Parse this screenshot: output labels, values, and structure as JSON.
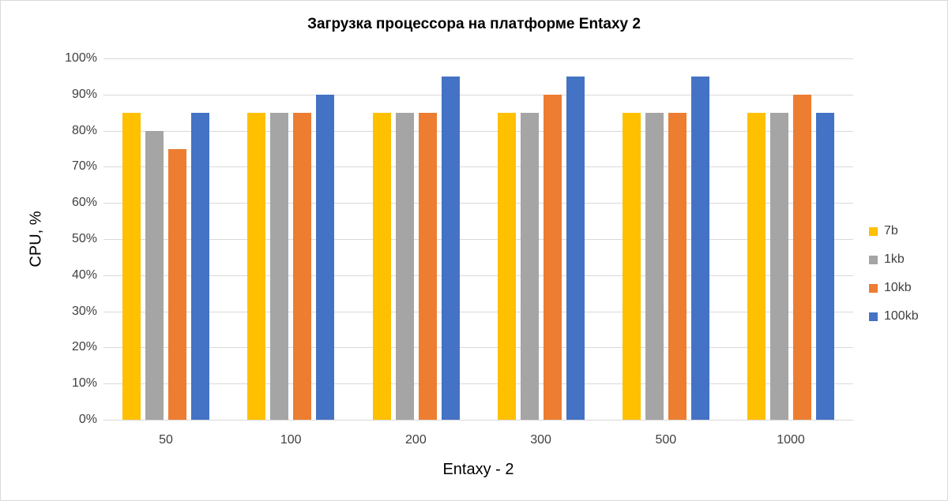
{
  "chart_data": {
    "type": "bar",
    "title": "Загрузка процессора на платформе Entaxy 2",
    "xlabel": "Entaxy - 2",
    "ylabel": "CPU, %",
    "ylim": [
      0,
      100
    ],
    "yticks": [
      "0%",
      "10%",
      "20%",
      "30%",
      "40%",
      "50%",
      "60%",
      "70%",
      "80%",
      "90%",
      "100%"
    ],
    "grid": true,
    "legend_position": "right",
    "categories": [
      "50",
      "100",
      "200",
      "300",
      "500",
      "1000"
    ],
    "series": [
      {
        "name": "7b",
        "color": "#FFC000",
        "values": [
          85,
          85,
          85,
          85,
          85,
          85
        ]
      },
      {
        "name": "1kb",
        "color": "#A5A5A5",
        "values": [
          80,
          85,
          85,
          85,
          85,
          85
        ]
      },
      {
        "name": "10kb",
        "color": "#ED7D31",
        "values": [
          75,
          85,
          85,
          90,
          85,
          90
        ]
      },
      {
        "name": "100kb",
        "color": "#4472C4",
        "values": [
          85,
          90,
          95,
          95,
          95,
          85
        ]
      }
    ]
  }
}
